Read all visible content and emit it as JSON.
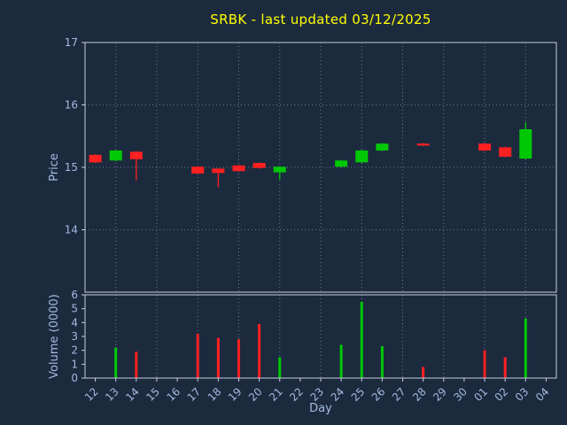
{
  "chart_data": {
    "type": "candlestick",
    "title": "SRBK - last updated 03/12/2025",
    "xlabel": "Day",
    "legend": "none",
    "grid": "dotted",
    "panels": [
      {
        "name": "price",
        "ylabel": "Price",
        "ylim": [
          13,
          17
        ],
        "yticks": [
          14,
          15,
          16,
          17
        ]
      },
      {
        "name": "volume",
        "ylabel": "Volume (0000)",
        "ylim": [
          0,
          6
        ],
        "yticks": [
          0,
          1,
          2,
          3,
          4,
          5,
          6
        ]
      }
    ],
    "categories": [
      "12",
      "13",
      "14",
      "15",
      "16",
      "17",
      "18",
      "19",
      "20",
      "21",
      "22",
      "23",
      "24",
      "25",
      "26",
      "27",
      "28",
      "29",
      "30",
      "01",
      "02",
      "03",
      "04"
    ],
    "grid_days": [
      "13",
      "15",
      "17",
      "19",
      "21",
      "23",
      "25",
      "27",
      "29",
      "01",
      "03"
    ],
    "series": [
      {
        "day": "12",
        "open": 15.2,
        "high": 15.21,
        "low": 15.07,
        "close": 15.08,
        "volume": 0
      },
      {
        "day": "13",
        "open": 15.11,
        "high": 15.28,
        "low": 15.1,
        "close": 15.27,
        "volume": 2.2
      },
      {
        "day": "14",
        "open": 15.25,
        "high": 15.26,
        "low": 14.79,
        "close": 15.13,
        "volume": 1.9
      },
      {
        "day": "17",
        "open": 15.01,
        "high": 15.02,
        "low": 14.89,
        "close": 14.9,
        "volume": 3.2
      },
      {
        "day": "18",
        "open": 14.98,
        "high": 14.99,
        "low": 14.68,
        "close": 14.91,
        "volume": 2.9
      },
      {
        "day": "19",
        "open": 15.03,
        "high": 15.04,
        "low": 14.93,
        "close": 14.94,
        "volume": 2.8
      },
      {
        "day": "20",
        "open": 15.07,
        "high": 15.08,
        "low": 14.98,
        "close": 14.99,
        "volume": 3.9
      },
      {
        "day": "21",
        "open": 14.92,
        "high": 15.02,
        "low": 14.8,
        "close": 15.01,
        "volume": 1.5
      },
      {
        "day": "24",
        "open": 15.01,
        "high": 15.12,
        "low": 15.0,
        "close": 15.11,
        "volume": 2.4
      },
      {
        "day": "25",
        "open": 15.08,
        "high": 15.28,
        "low": 15.07,
        "close": 15.27,
        "volume": 5.5
      },
      {
        "day": "26",
        "open": 15.27,
        "high": 15.39,
        "low": 15.26,
        "close": 15.38,
        "volume": 2.3
      },
      {
        "day": "28",
        "open": 15.38,
        "high": 15.39,
        "low": 15.34,
        "close": 15.35,
        "volume": 0.8
      },
      {
        "day": "01",
        "open": 15.38,
        "high": 15.39,
        "low": 15.26,
        "close": 15.27,
        "volume": 2.0
      },
      {
        "day": "02",
        "open": 15.32,
        "high": 15.33,
        "low": 15.16,
        "close": 15.17,
        "volume": 1.5
      },
      {
        "day": "03",
        "open": 15.14,
        "high": 15.72,
        "low": 15.13,
        "close": 15.61,
        "volume": 4.3
      }
    ],
    "colors": {
      "up": "#00c805",
      "down": "#ff2020",
      "background": "#1c2a3e",
      "grid": "#8494a8",
      "spine": "#c3cddc",
      "text": "#a3bbdf",
      "title": "#ffff00"
    }
  }
}
